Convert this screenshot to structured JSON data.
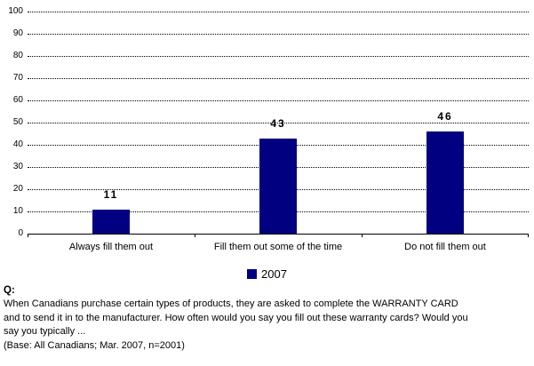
{
  "chart_data": {
    "type": "bar",
    "categories": [
      "Always fill them out",
      "Fill them out some of the time",
      "Do not fill them out"
    ],
    "series": [
      {
        "name": "2007",
        "values": [
          11,
          43,
          46
        ]
      }
    ],
    "title": "",
    "xlabel": "",
    "ylabel": "",
    "ylim": [
      0,
      100
    ],
    "yticks": [
      0,
      10,
      20,
      30,
      40,
      50,
      60,
      70,
      80,
      90,
      100
    ],
    "grid": "horizontal-dotted",
    "legend_position": "bottom-center",
    "bar_color": "#000080"
  },
  "legend": {
    "label": "2007",
    "swatch_color": "#000080"
  },
  "footer": {
    "q_label": "Q:",
    "question_lines": [
      "When Canadians purchase certain types of products, they are asked to complete the WARRANTY CARD",
      "and to send it in to the manufacturer. How often would you say you fill out these warranty cards? Would you",
      "say you typically ..."
    ],
    "base_note": "(Base: All Canadians; Mar. 2007, n=2001)"
  }
}
